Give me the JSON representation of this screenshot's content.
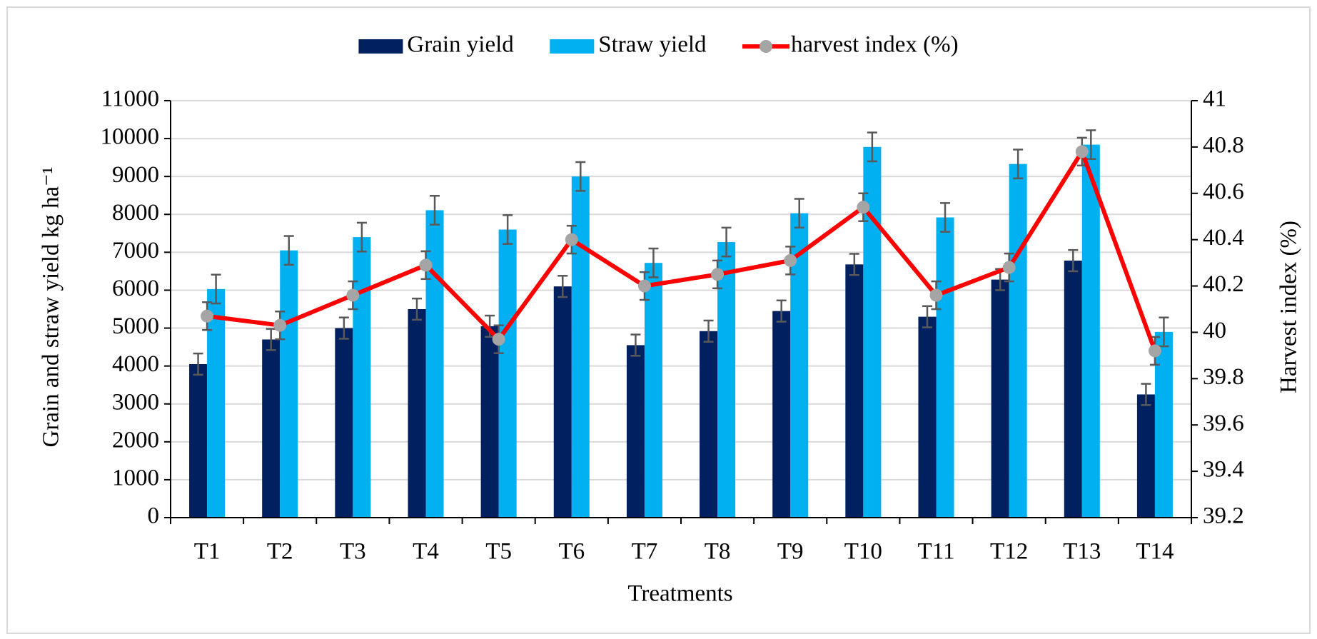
{
  "chart_data": {
    "type": "bar",
    "x_label": "Treatments",
    "y_label": "Grain and straw yield kg ha⁻¹",
    "y2_label": "Harvest index (%)",
    "categories": [
      "T1",
      "T2",
      "T3",
      "T4",
      "T5",
      "T6",
      "T7",
      "T8",
      "T9",
      "T10",
      "T11",
      "T12",
      "T13",
      "T14"
    ],
    "series": [
      {
        "name": "Grain yield",
        "color": "#002060",
        "values": [
          4050,
          4700,
          5000,
          5500,
          5050,
          6100,
          4550,
          4920,
          5450,
          6680,
          5300,
          6280,
          6780,
          3250
        ],
        "errors": [
          280,
          280,
          280,
          280,
          280,
          280,
          280,
          280,
          280,
          280,
          280,
          280,
          280,
          280
        ]
      },
      {
        "name": "Straw yield",
        "color": "#00b0f0",
        "values": [
          6030,
          7050,
          7400,
          8110,
          7600,
          9000,
          6720,
          7270,
          8030,
          9780,
          7920,
          9330,
          9840,
          4900
        ],
        "errors": [
          380,
          380,
          380,
          380,
          380,
          380,
          380,
          380,
          380,
          380,
          380,
          380,
          380,
          380
        ]
      },
      {
        "name": "harvest index (%)",
        "color": "#ff0000",
        "type": "line",
        "axis": "y2",
        "marker_color": "#a5a5a5",
        "values": [
          40.07,
          40.03,
          40.16,
          40.29,
          39.97,
          40.4,
          40.2,
          40.25,
          40.31,
          40.54,
          40.16,
          40.28,
          40.78,
          39.92
        ],
        "errors": [
          0.06,
          0.06,
          0.06,
          0.06,
          0.06,
          0.06,
          0.06,
          0.06,
          0.06,
          0.06,
          0.06,
          0.06,
          0.06,
          0.06
        ]
      }
    ],
    "ylim": [
      0,
      11000
    ],
    "yticks": [
      0,
      1000,
      2000,
      3000,
      4000,
      5000,
      6000,
      7000,
      8000,
      9000,
      10000,
      11000
    ],
    "y2lim": [
      39.2,
      41
    ],
    "y2ticks": [
      39.2,
      39.4,
      39.6,
      39.8,
      40,
      40.2,
      40.4,
      40.6,
      40.8,
      41
    ],
    "grid": true,
    "legend": "top"
  }
}
